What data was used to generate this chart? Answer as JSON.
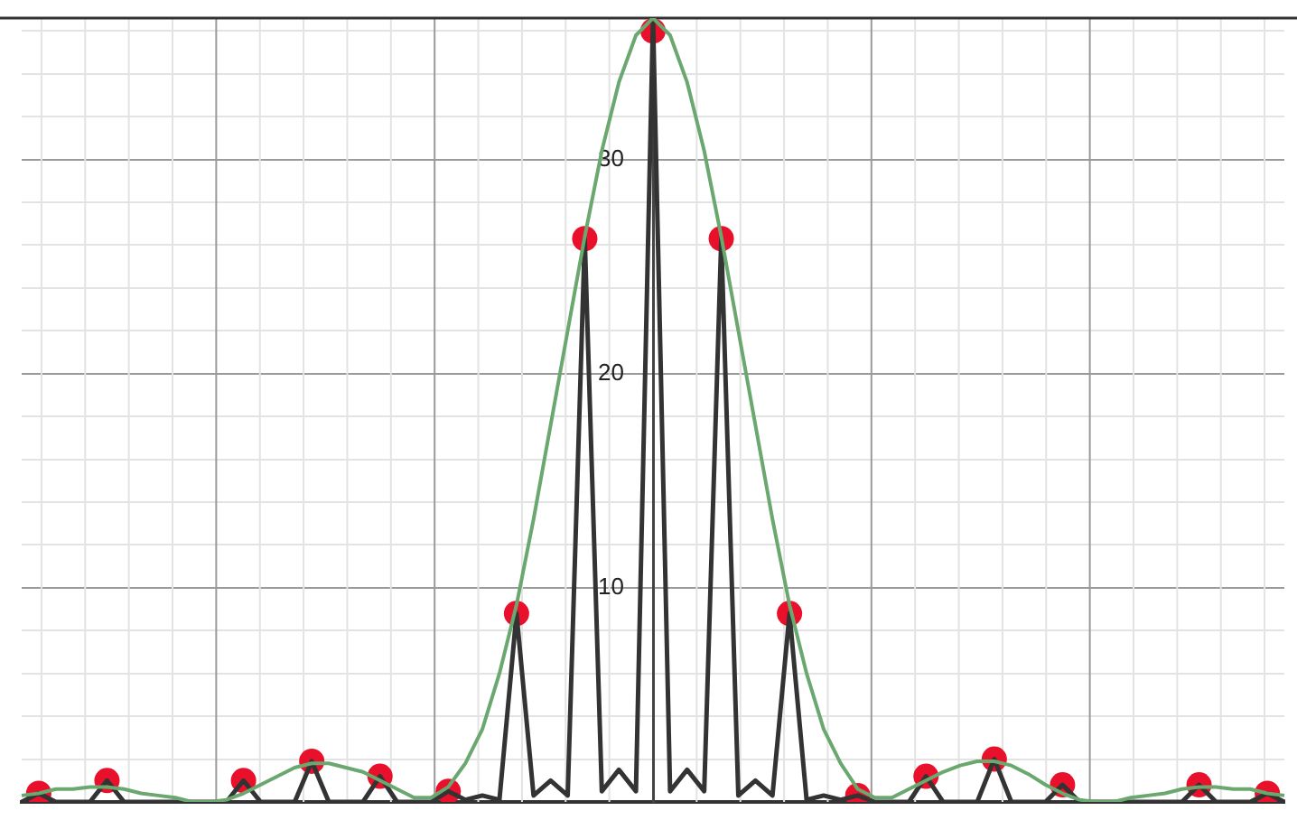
{
  "chart_data": {
    "type": "line",
    "categories": [
      null,
      null,
      null,
      null,
      null,
      null,
      null,
      null,
      null,
      null,
      null,
      null,
      null,
      null,
      null,
      null,
      null,
      null,
      null,
      null,
      null,
      null,
      null,
      null,
      null,
      null,
      null,
      null,
      null,
      null,
      null,
      null,
      null,
      null,
      null,
      null,
      null,
      null,
      null,
      null,
      null,
      null,
      null,
      null,
      null,
      null,
      null,
      null,
      null,
      null,
      null,
      null,
      null,
      null,
      null,
      null,
      null,
      null,
      null,
      null,
      null,
      null,
      null,
      null,
      null,
      null,
      null,
      null,
      null,
      null,
      null,
      null,
      null,
      null,
      null
    ],
    "series": [
      {
        "color": "#6aa86f",
        "values": [
          0.3,
          0.4,
          0.6,
          0.6,
          0.7,
          0.7,
          0.6,
          0.4,
          0.3,
          0.2,
          0,
          0,
          0.1,
          0.4,
          0.8,
          1.2,
          1.6,
          1.8,
          1.8,
          1.6,
          1.4,
          1,
          0.6,
          0.2,
          0.2,
          0.7,
          1.8,
          3.4,
          6,
          9.2,
          13.2,
          17.6,
          22,
          26.4,
          30.4,
          33.6,
          35.8,
          36.6,
          35.8,
          33.6,
          30.4,
          26.4,
          22,
          17.6,
          13.2,
          9.2,
          6,
          3.4,
          1.8,
          0.6,
          0.2,
          0.2,
          0.6,
          1,
          1.4,
          1.7,
          1.9,
          1.9,
          1.7,
          1.3,
          0.8,
          0.4,
          0.1,
          0,
          0,
          0.2,
          0.3,
          0.4,
          0.6,
          0.7,
          0.7,
          0.6,
          0.6,
          0.4,
          0.3
        ]
      },
      {
        "color": "#333333",
        "values": [
          0,
          0.4,
          0,
          0,
          0,
          1,
          0,
          0,
          0,
          0,
          0,
          0,
          0,
          1,
          0,
          0,
          0,
          1.9,
          0,
          0,
          0,
          1.2,
          0,
          0,
          0,
          0.5,
          0.1,
          0.3,
          0.1,
          8.8,
          0.3,
          1,
          0.3,
          26.3,
          0.5,
          1.5,
          0.5,
          36.6,
          0.5,
          1.5,
          0.5,
          26.3,
          0.3,
          1,
          0.3,
          8.8,
          0.1,
          0.3,
          0.1,
          0.3,
          0,
          0,
          0,
          1.2,
          0,
          0,
          0,
          2,
          0,
          0,
          0,
          0.8,
          0,
          0,
          0,
          0,
          0,
          0,
          0,
          0.8,
          0,
          0,
          0,
          0.4,
          0
        ]
      },
      {
        "type": "scatter",
        "marker": "circle",
        "color": "#e8102a",
        "values": [
          null,
          0.4,
          null,
          null,
          null,
          1,
          null,
          null,
          null,
          null,
          null,
          null,
          null,
          1,
          null,
          null,
          null,
          1.9,
          null,
          null,
          null,
          1.2,
          null,
          null,
          null,
          0.5,
          null,
          null,
          null,
          8.8,
          null,
          null,
          null,
          26.3,
          null,
          null,
          null,
          36,
          null,
          null,
          null,
          26.3,
          null,
          null,
          null,
          8.8,
          null,
          null,
          null,
          0.3,
          null,
          null,
          null,
          1.2,
          null,
          null,
          null,
          2,
          null,
          null,
          null,
          0.8,
          null,
          null,
          null,
          null,
          null,
          null,
          null,
          0.8,
          null,
          null,
          null,
          0.4,
          null
        ]
      }
    ],
    "ylim": [
      0,
      36.6
    ],
    "yticks": [
      {
        "value": 2,
        "label": null
      },
      {
        "value": 4,
        "label": null
      },
      {
        "value": 6,
        "label": null
      },
      {
        "value": 8,
        "label": null
      },
      10,
      {
        "value": 12,
        "label": null
      },
      {
        "value": 14,
        "label": null
      },
      {
        "value": 16,
        "label": null
      },
      {
        "value": 18,
        "label": null
      },
      20,
      {
        "value": 22,
        "label": null
      },
      {
        "value": 24,
        "label": null
      },
      {
        "value": 26,
        "label": null
      },
      {
        "value": 28,
        "label": null
      },
      30,
      {
        "value": 32,
        "label": null
      },
      {
        "value": 34,
        "label": null
      },
      {
        "value": 36,
        "label": null
      }
    ],
    "grid": true,
    "legend": false,
    "marker": "none",
    "line_style": "solid",
    "tick_labels": "y"
  }
}
